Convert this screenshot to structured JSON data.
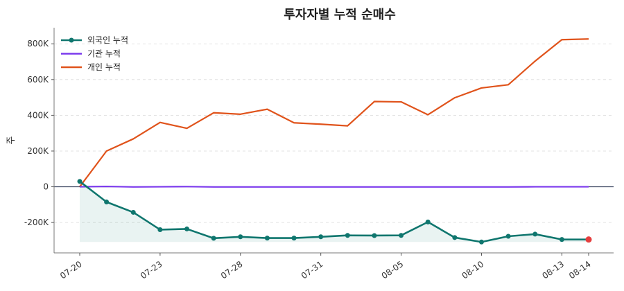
{
  "chart_data": {
    "type": "line",
    "title": "투자자별 누적 순매수",
    "ylabel": "주",
    "xlabel": "",
    "x": [
      "07-20",
      "07-21",
      "07-22",
      "07-23",
      "07-24",
      "07-27",
      "07-28",
      "07-29",
      "07-30",
      "07-31",
      "08-03",
      "08-04",
      "08-05",
      "08-06",
      "08-07",
      "08-10",
      "08-11",
      "08-12",
      "08-13",
      "08-14"
    ],
    "x_tick_labels": [
      "07-20",
      "07-23",
      "07-28",
      "07-31",
      "08-05",
      "08-10",
      "08-13",
      "08-14"
    ],
    "ylim": [
      -370000,
      890000
    ],
    "y_ticks": [
      -200000,
      0,
      200000,
      400000,
      600000,
      800000
    ],
    "y_tick_labels": [
      "-200K",
      "0",
      "200K",
      "400K",
      "600K",
      "800K"
    ],
    "grid": "horizontal-dashed",
    "legend_position": "top-left",
    "series": [
      {
        "name": "외국인 누적",
        "color": "#0f766e",
        "marker": "circle",
        "fill_area": true,
        "last_point_color": "#e53e3e",
        "values": [
          30000,
          -85000,
          -143000,
          -240000,
          -236000,
          -288000,
          -280000,
          -287000,
          -287000,
          -280000,
          -272000,
          -273000,
          -272000,
          -197000,
          -284000,
          -309000,
          -277000,
          -265000,
          -295000,
          -295000
        ]
      },
      {
        "name": "기관 누적",
        "color": "#7c3aed",
        "values": [
          0,
          2000,
          -1000,
          0,
          1000,
          -1000,
          -1000,
          -1000,
          -1000,
          -1000,
          -1000,
          -1000,
          -1000,
          -1000,
          -1000,
          -1000,
          -1000,
          0,
          0,
          0
        ]
      },
      {
        "name": "개인 누적",
        "color": "#e0531b",
        "values": [
          0,
          200000,
          268000,
          360000,
          327000,
          414000,
          406000,
          434000,
          358000,
          350000,
          341000,
          477000,
          475000,
          403000,
          498000,
          553000,
          571000,
          703000,
          823000,
          827000
        ]
      }
    ]
  }
}
